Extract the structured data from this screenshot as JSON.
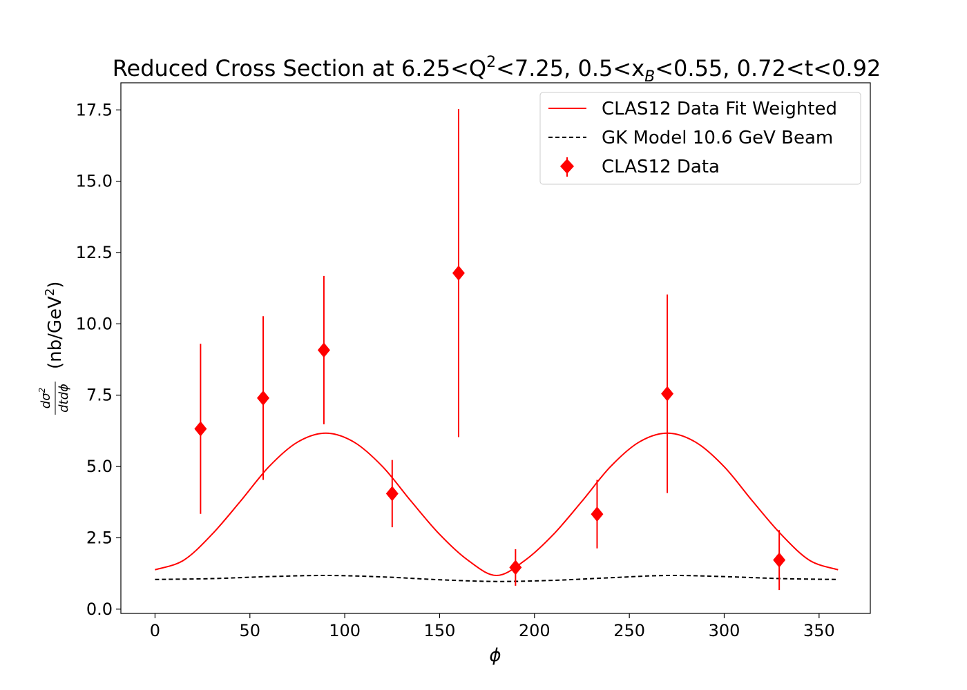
{
  "chart_data": {
    "type": "scatter",
    "title": {
      "main": "Reduced Cross Section at 6.25<Q",
      "sup": "2",
      "mid1": "<7.25, 0.5<x",
      "sub": "B",
      "mid2": "<0.55, 0.72<t<0.92"
    },
    "xlabel": "ϕ",
    "ylabel": {
      "num": "dσ",
      "num_sup": "2",
      "den": "dtdϕ",
      "unit_pre": "(nb/GeV",
      "unit_sup": "2",
      "unit_post": ")"
    },
    "xlim": [
      -18,
      377
    ],
    "ylim": [
      -0.15,
      18.45
    ],
    "x_ticks": [
      0,
      50,
      100,
      150,
      200,
      250,
      300,
      350
    ],
    "y_ticks": [
      0.0,
      2.5,
      5.0,
      7.5,
      10.0,
      12.5,
      15.0,
      17.5
    ],
    "grid": false,
    "legend_position": "top-right",
    "series": [
      {
        "name": "CLAS12 Data Fit Weighted",
        "kind": "line",
        "color": "#ff0000",
        "style": "solid",
        "x": [
          0,
          15,
          30,
          45,
          60,
          75,
          90,
          105,
          120,
          135,
          150,
          165,
          180,
          195,
          210,
          225,
          240,
          255,
          270,
          285,
          300,
          315,
          330,
          345,
          360
        ],
        "y": [
          1.38,
          1.71,
          2.62,
          3.78,
          4.99,
          5.85,
          6.17,
          5.85,
          4.99,
          3.78,
          2.62,
          1.71,
          1.18,
          1.71,
          2.62,
          3.78,
          4.99,
          5.85,
          6.17,
          5.85,
          4.99,
          3.78,
          2.62,
          1.71,
          1.38
        ]
      },
      {
        "name": "GK Model 10.6 GeV Beam",
        "kind": "line",
        "color": "#000000",
        "style": "dashed",
        "x": [
          0,
          30,
          60,
          90,
          120,
          150,
          180,
          210,
          240,
          270,
          300,
          330,
          360
        ],
        "y": [
          1.04,
          1.07,
          1.14,
          1.18,
          1.13,
          1.03,
          0.97,
          1.01,
          1.1,
          1.18,
          1.14,
          1.07,
          1.04
        ]
      },
      {
        "name": "CLAS12 Data",
        "kind": "errorbar",
        "color": "#ff0000",
        "marker": "diamond",
        "points": [
          {
            "x": 24,
            "y": 6.32,
            "err": 2.98
          },
          {
            "x": 57,
            "y": 7.4,
            "err": 2.87
          },
          {
            "x": 89,
            "y": 9.08,
            "err": 2.6
          },
          {
            "x": 125,
            "y": 4.05,
            "err": 1.18
          },
          {
            "x": 160,
            "y": 11.78,
            "err": 5.75
          },
          {
            "x": 190,
            "y": 1.46,
            "err": 0.64
          },
          {
            "x": 233,
            "y": 3.33,
            "err": 1.2
          },
          {
            "x": 270,
            "y": 7.55,
            "err": 3.48
          },
          {
            "x": 329,
            "y": 1.72,
            "err": 1.05
          }
        ]
      }
    ]
  }
}
